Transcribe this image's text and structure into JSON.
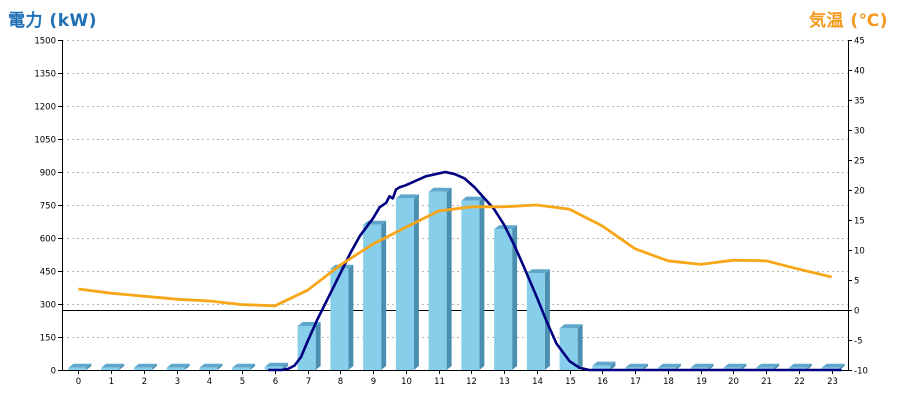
{
  "chart_data": {
    "type": "bar",
    "title": "",
    "left_axis": {
      "label": "電力 (kW)",
      "range": [
        0,
        1500
      ],
      "ticks": [
        0,
        150,
        300,
        450,
        600,
        750,
        900,
        1050,
        1200,
        1350,
        1500
      ],
      "color": "#1f6fb5"
    },
    "right_axis": {
      "label": "気温 (℃)",
      "range": [
        -10,
        45
      ],
      "ticks": [
        -10,
        -5,
        0,
        5,
        10,
        15,
        20,
        25,
        30,
        35,
        40,
        45
      ],
      "color": "#f39a1e"
    },
    "categories": [
      "0",
      "1",
      "2",
      "3",
      "4",
      "5",
      "6",
      "7",
      "8",
      "9",
      "10",
      "11",
      "12",
      "13",
      "14",
      "15",
      "16",
      "17",
      "18",
      "19",
      "20",
      "21",
      "22",
      "23"
    ],
    "grid": true,
    "series": [
      {
        "kind": "bar",
        "axis": "left",
        "color": "#87ceeb",
        "values": [
          10,
          10,
          10,
          10,
          10,
          10,
          15,
          200,
          460,
          660,
          780,
          810,
          770,
          640,
          440,
          190,
          20,
          10,
          10,
          10,
          10,
          10,
          10,
          10
        ]
      },
      {
        "kind": "line",
        "axis": "left",
        "color": "#000080",
        "x": [
          5.8,
          6.0,
          6.2,
          6.4,
          6.6,
          6.8,
          7.0,
          7.3,
          7.6,
          8.0,
          8.3,
          8.6,
          9.0,
          9.2,
          9.4,
          9.5,
          9.6,
          9.7,
          9.8,
          10.0,
          10.3,
          10.6,
          10.9,
          11.2,
          11.5,
          11.8,
          12.1,
          12.4,
          12.7,
          13.0,
          13.3,
          13.6,
          14.0,
          14.3,
          14.6,
          15.0,
          15.3,
          15.6,
          15.8,
          16.0,
          16.5,
          17.0,
          23.3
        ],
        "values": [
          0,
          0,
          0,
          5,
          20,
          60,
          130,
          230,
          320,
          440,
          530,
          610,
          690,
          740,
          760,
          790,
          780,
          820,
          830,
          840,
          860,
          880,
          890,
          900,
          890,
          870,
          830,
          780,
          730,
          660,
          570,
          470,
          330,
          220,
          120,
          40,
          10,
          0,
          0,
          0,
          0,
          0,
          0
        ]
      },
      {
        "kind": "line",
        "axis": "right",
        "color": "#f7a618",
        "values": [
          3.5,
          2.8,
          2.3,
          1.8,
          1.5,
          0.9,
          0.7,
          3.3,
          7.5,
          11.0,
          13.8,
          16.5,
          17.2,
          17.2,
          17.5,
          16.8,
          14.0,
          10.2,
          8.2,
          7.6,
          8.3,
          8.2,
          6.8,
          5.5
        ]
      }
    ]
  }
}
